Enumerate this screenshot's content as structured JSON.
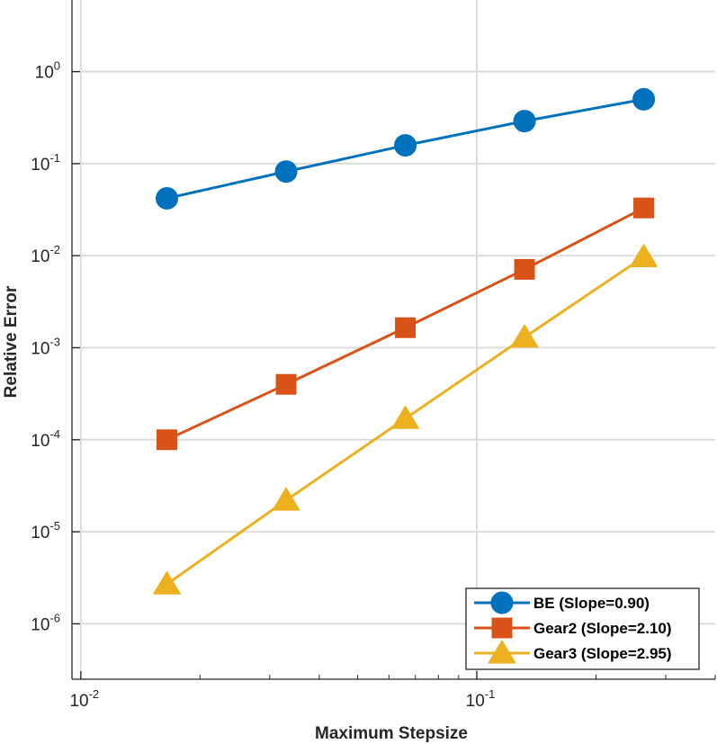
{
  "chart_data": {
    "type": "line",
    "scale": {
      "x": "log",
      "y": "log"
    },
    "xlabel": "Maximum Stepsize",
    "ylabel": "Relative Error",
    "xlim": [
      0.0095,
      0.4
    ],
    "ylim": [
      2.5e-07,
      6
    ],
    "grid": true,
    "legend_position": "bottom-right",
    "x_ticks": [
      {
        "value": 0.01,
        "base": "10",
        "exp": "-2"
      },
      {
        "value": 0.1,
        "base": "10",
        "exp": "-1"
      }
    ],
    "y_ticks": [
      {
        "value": 1,
        "base": "10",
        "exp": "0"
      },
      {
        "value": 0.1,
        "base": "10",
        "exp": "-1"
      },
      {
        "value": 0.01,
        "base": "10",
        "exp": "-2"
      },
      {
        "value": 0.001,
        "base": "10",
        "exp": "-3"
      },
      {
        "value": 0.0001,
        "base": "10",
        "exp": "-4"
      },
      {
        "value": 1e-05,
        "base": "10",
        "exp": "-5"
      },
      {
        "value": 1e-06,
        "base": "10",
        "exp": "-6"
      }
    ],
    "x": [
      0.0165,
      0.033,
      0.066,
      0.132,
      0.264
    ],
    "series": [
      {
        "name": "BE (Slope=0.90)",
        "marker": "circle",
        "color": "#0072BD",
        "values": [
          0.042,
          0.082,
          0.158,
          0.29,
          0.5
        ]
      },
      {
        "name": "Gear2 (Slope=2.10)",
        "marker": "square",
        "color": "#D95319",
        "values": [
          0.0001,
          0.0004,
          0.00165,
          0.0071,
          0.033
        ]
      },
      {
        "name": "Gear3 (Slope=2.95)",
        "marker": "triangle",
        "color": "#EDB120",
        "values": [
          2.7e-06,
          2.2e-05,
          0.00017,
          0.0013,
          0.0097
        ]
      }
    ]
  }
}
